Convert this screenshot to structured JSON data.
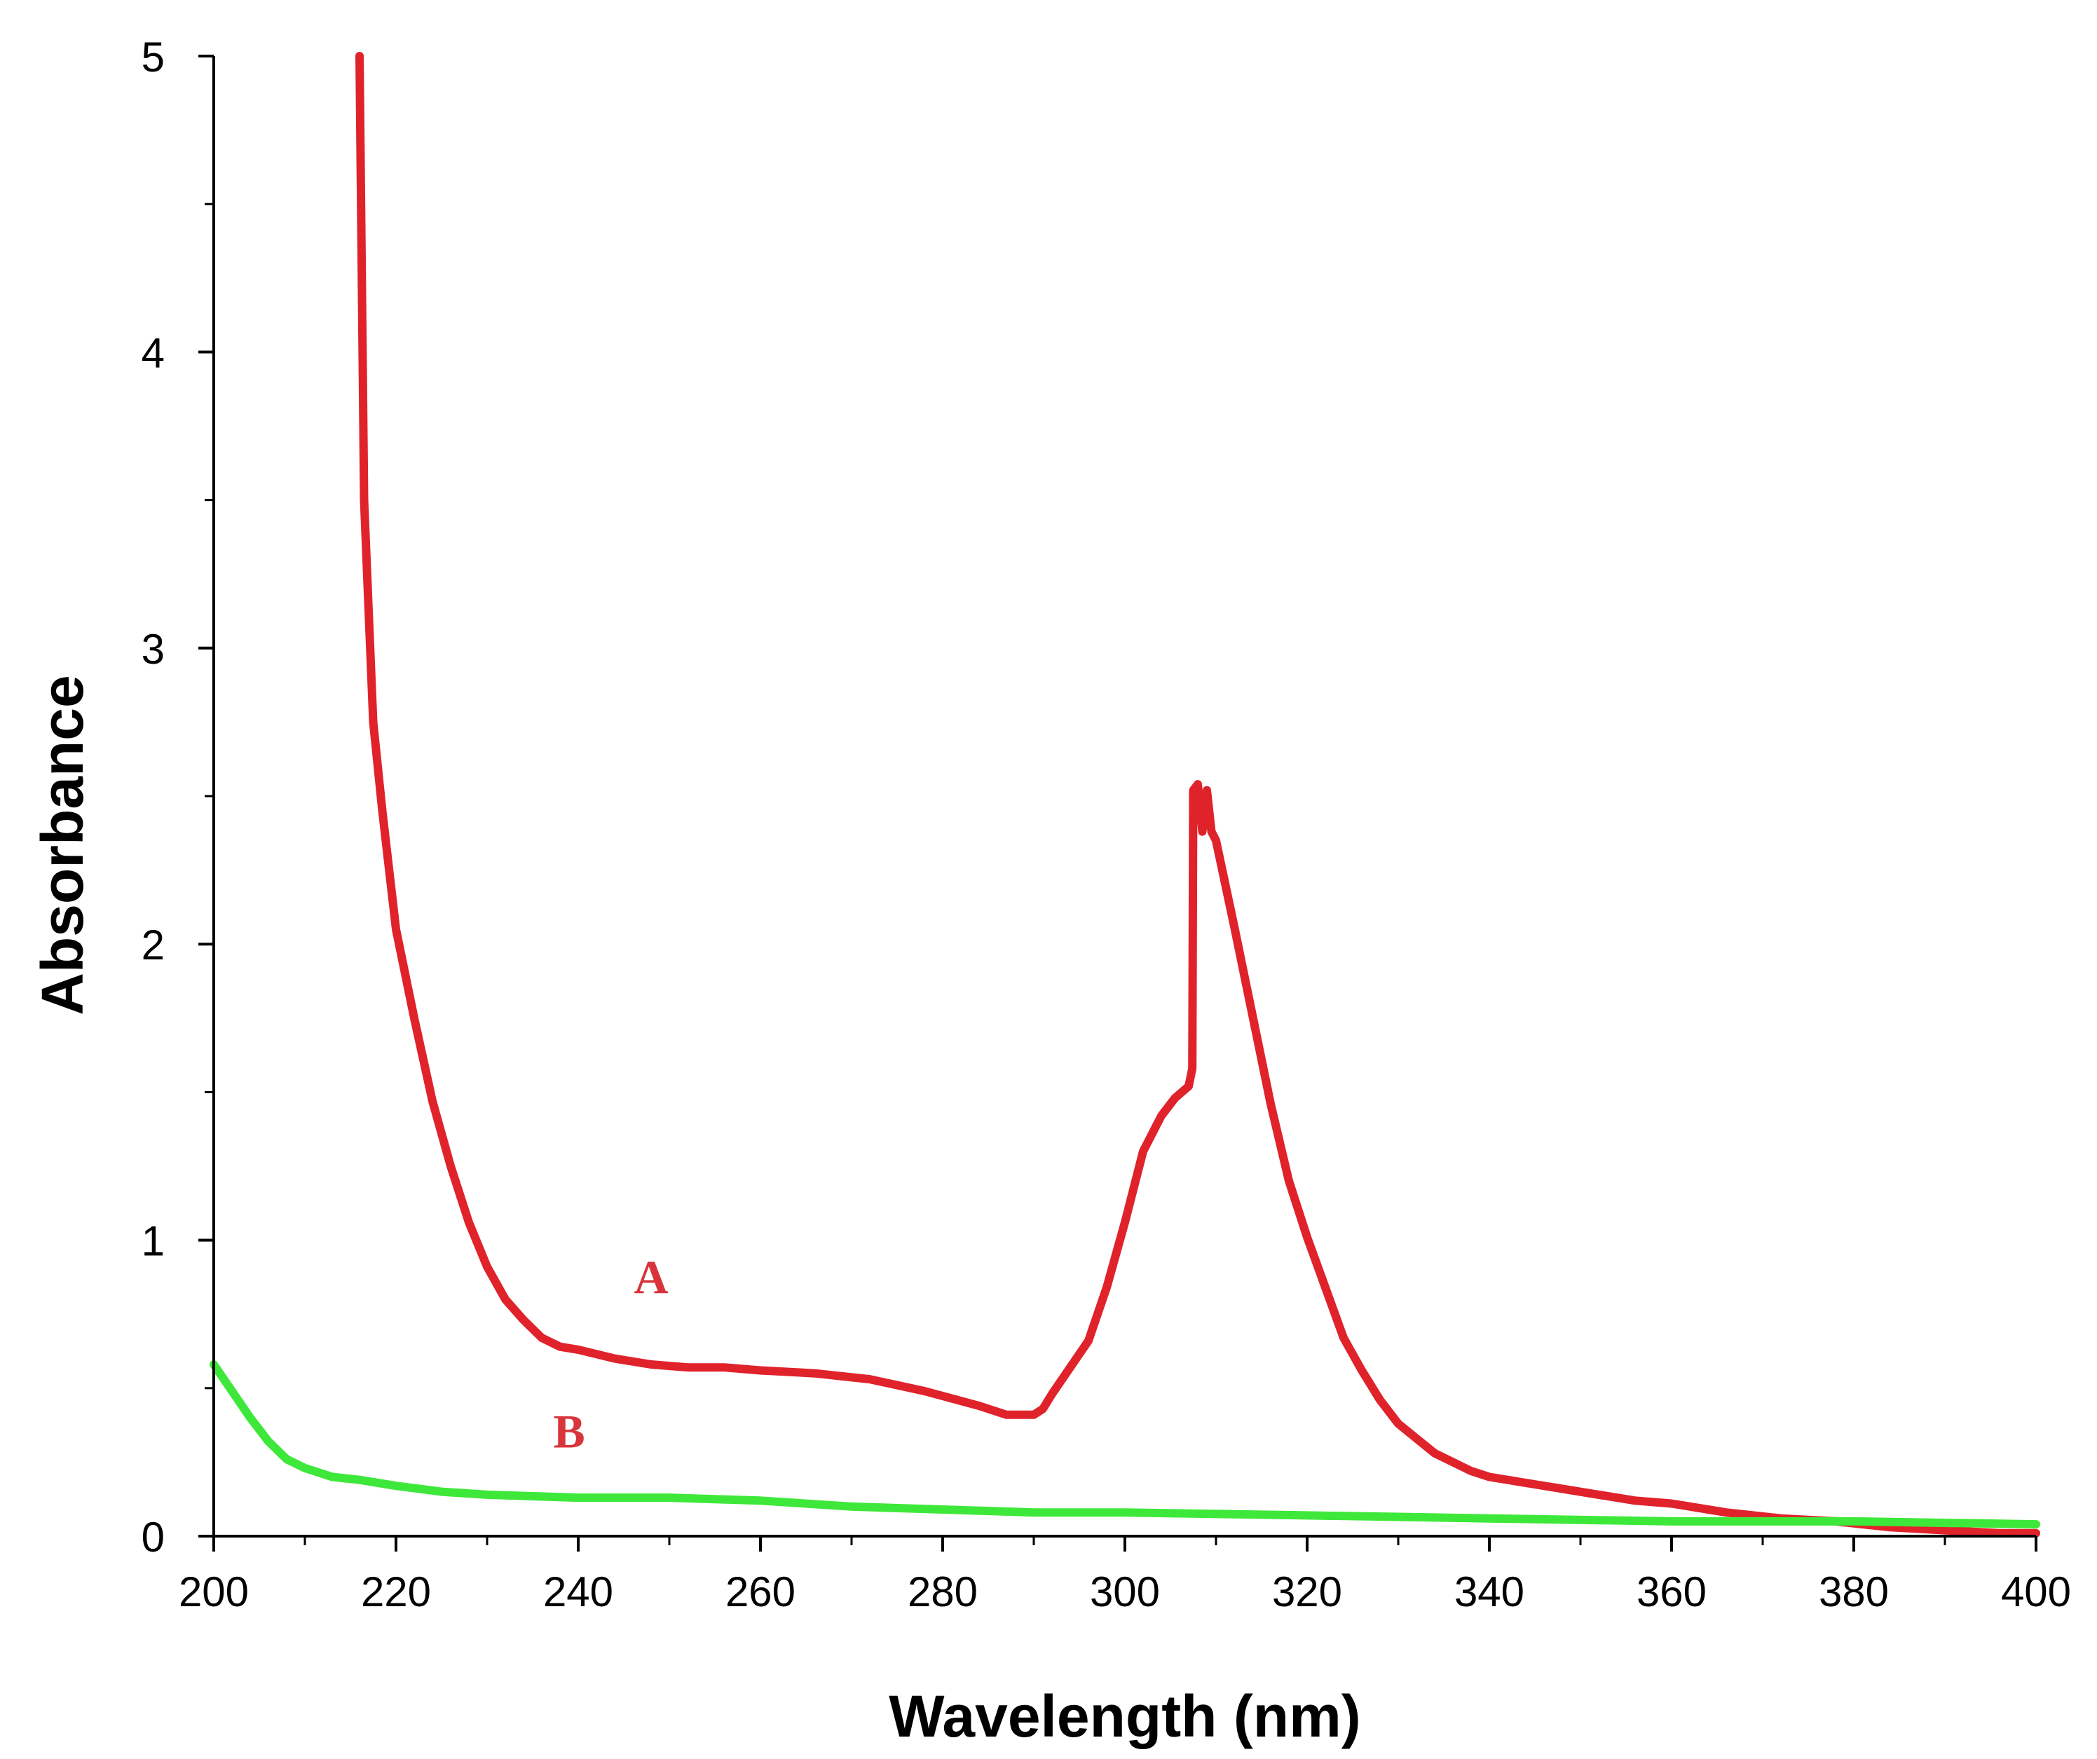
{
  "chart_data": {
    "type": "line",
    "title": "",
    "xlabel": "Wavelength (nm)",
    "ylabel": "Absorbance",
    "xlim": [
      200,
      400
    ],
    "ylim": [
      0,
      5
    ],
    "x_ticks": [
      200,
      220,
      240,
      260,
      280,
      300,
      320,
      340,
      360,
      380,
      400
    ],
    "y_ticks": [
      0,
      1,
      2,
      3,
      4,
      5
    ],
    "grid": false,
    "legend": "none",
    "series": [
      {
        "name": "A",
        "color": "#e0222b",
        "label_position": [
          248,
          0.82
        ],
        "x": [
          216,
          216.5,
          217.5,
          218.5,
          220,
          222,
          224,
          226,
          228,
          230,
          232,
          234,
          236,
          238,
          240,
          244,
          248,
          252,
          256,
          260,
          266,
          272,
          278,
          284,
          287,
          290,
          291,
          292,
          294,
          296,
          298,
          300,
          302,
          304,
          305.5,
          307,
          307.4,
          307.5,
          308,
          308.5,
          309,
          309.5,
          310,
          312,
          314,
          316,
          318,
          320,
          322,
          324,
          326,
          328,
          330,
          332,
          334,
          336,
          338,
          340,
          344,
          348,
          352,
          356,
          360,
          366,
          372,
          378,
          384,
          390,
          396,
          400
        ],
        "values": [
          5.0,
          3.5,
          2.75,
          2.45,
          2.05,
          1.75,
          1.47,
          1.25,
          1.06,
          0.91,
          0.8,
          0.73,
          0.67,
          0.64,
          0.63,
          0.6,
          0.58,
          0.57,
          0.57,
          0.56,
          0.55,
          0.53,
          0.49,
          0.44,
          0.41,
          0.41,
          0.43,
          0.48,
          0.57,
          0.66,
          0.84,
          1.06,
          1.3,
          1.42,
          1.48,
          1.52,
          1.58,
          2.52,
          2.54,
          2.38,
          2.52,
          2.38,
          2.35,
          2.06,
          1.76,
          1.46,
          1.2,
          1.01,
          0.84,
          0.67,
          0.56,
          0.46,
          0.38,
          0.33,
          0.28,
          0.25,
          0.22,
          0.2,
          0.18,
          0.16,
          0.14,
          0.12,
          0.11,
          0.08,
          0.06,
          0.05,
          0.03,
          0.02,
          0.01,
          0.01
        ]
      },
      {
        "name": "B",
        "color": "#3ee83a",
        "label_position": [
          239,
          0.3
        ],
        "x": [
          200,
          202,
          204,
          206,
          208,
          210,
          213,
          216,
          220,
          225,
          230,
          240,
          250,
          260,
          270,
          280,
          290,
          300,
          320,
          340,
          360,
          380,
          400
        ],
        "values": [
          0.58,
          0.49,
          0.4,
          0.32,
          0.26,
          0.23,
          0.2,
          0.19,
          0.17,
          0.15,
          0.14,
          0.13,
          0.13,
          0.12,
          0.1,
          0.09,
          0.08,
          0.08,
          0.07,
          0.06,
          0.05,
          0.05,
          0.04
        ]
      }
    ]
  }
}
